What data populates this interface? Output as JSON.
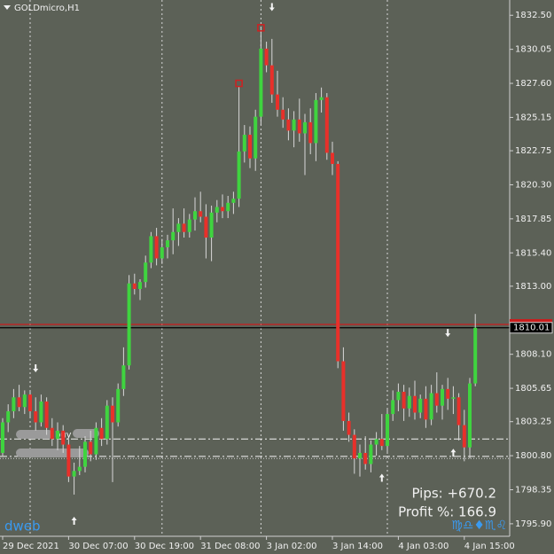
{
  "chart_data": {
    "type": "candlestick",
    "title": "GOLDmicro,H1",
    "categories": [
      "29 Dec 2021",
      null,
      null,
      null,
      null,
      null,
      null,
      null,
      null,
      null,
      null,
      null,
      "30 Dec 07:00",
      null,
      null,
      null,
      null,
      null,
      null,
      null,
      null,
      null,
      null,
      null,
      "30 Dec 19:00",
      null,
      null,
      null,
      null,
      null,
      null,
      null,
      null,
      null,
      null,
      null,
      "31 Dec 08:00",
      null,
      null,
      null,
      null,
      null,
      null,
      null,
      null,
      null,
      null,
      null,
      "3 Jan 02:00",
      null,
      null,
      null,
      null,
      null,
      null,
      null,
      null,
      null,
      null,
      null,
      "3 Jan 14:00",
      null,
      null,
      null,
      null,
      null,
      null,
      null,
      null,
      null,
      null,
      null,
      "4 Jan 03:00",
      null,
      null,
      null,
      null,
      null,
      null,
      null,
      null,
      null,
      null,
      null,
      "4 Jan 15:00",
      null,
      null
    ],
    "open": [
      1801.0,
      1803.2,
      1804.0,
      1805.0,
      1804.3,
      1805.2,
      1804.0,
      1803.2,
      1804.7,
      1802.8,
      1802.0,
      1802.6,
      1801.6,
      1799.3,
      1799.7,
      1800.0,
      1801.8,
      1800.9,
      1802.8,
      1802.0,
      1804.4,
      1803.2,
      1805.6,
      1807.3,
      1813.2,
      1812.8,
      1813.3,
      1814.7,
      1816.6,
      1815.0,
      1815.8,
      1816.3,
      1816.9,
      1817.5,
      1816.9,
      1817.8,
      1818.4,
      1818.0,
      1816.5,
      1818.3,
      1818.7,
      1818.4,
      1819.0,
      1819.3,
      1822.7,
      1823.9,
      1822.2,
      1825.2,
      1830.1,
      1828.9,
      1826.8,
      1825.7,
      1825.0,
      1824.2,
      1825.0,
      1824.0,
      1824.8,
      1823.3,
      1826.4,
      1826.6,
      1822.6,
      1821.8,
      1807.6,
      1803.3,
      1802.3,
      1800.6,
      1801.0,
      1800.2,
      1801.6,
      1802.0,
      1801.5,
      1803.8,
      1804.8,
      1805.4,
      1804.2,
      1805.1,
      1803.9,
      1804.9,
      1803.4,
      1805.3,
      1804.4,
      1805.6,
      1804.9,
      1805.0,
      1803.0,
      1801.4,
      1806.0
    ],
    "high": [
      1803.5,
      1804.5,
      1805.6,
      1805.9,
      1805.5,
      1805.5,
      1805.0,
      1805.2,
      1805.0,
      1803.5,
      1803.2,
      1803.0,
      1802.0,
      1800.3,
      1801.5,
      1802.2,
      1802.6,
      1803.2,
      1803.5,
      1804.8,
      1805.0,
      1806.0,
      1808.6,
      1813.8,
      1813.9,
      1813.5,
      1815.2,
      1816.9,
      1817.2,
      1816.4,
      1816.7,
      1818.6,
      1817.9,
      1818.6,
      1818.2,
      1819.4,
      1819.8,
      1818.9,
      1818.8,
      1819.2,
      1819.6,
      1819.5,
      1819.8,
      1827.4,
      1824.6,
      1824.5,
      1825.7,
      1831.6,
      1830.6,
      1830.8,
      1828.5,
      1826.6,
      1825.8,
      1825.6,
      1826.5,
      1825.4,
      1825.8,
      1826.9,
      1827.3,
      1826.9,
      1823.4,
      1822.0,
      1808.6,
      1803.9,
      1802.7,
      1801.6,
      1802.2,
      1801.9,
      1802.5,
      1803.8,
      1804.2,
      1805.5,
      1806.0,
      1805.9,
      1805.7,
      1806.2,
      1805.2,
      1805.8,
      1805.9,
      1806.8,
      1805.9,
      1806.4,
      1805.8,
      1805.3,
      1804.1,
      1806.4,
      1811.0
    ],
    "low": [
      1800.8,
      1802.5,
      1803.5,
      1804.0,
      1803.8,
      1803.6,
      1802.6,
      1802.9,
      1802.3,
      1801.5,
      1801.2,
      1801.0,
      1798.9,
      1798.0,
      1799.4,
      1799.6,
      1800.4,
      1800.5,
      1801.5,
      1801.6,
      1798.9,
      1802.9,
      1805.1,
      1807.0,
      1812.4,
      1812.0,
      1812.9,
      1814.3,
      1814.5,
      1814.6,
      1815.0,
      1815.3,
      1815.9,
      1816.5,
      1816.5,
      1817.0,
      1817.6,
      1815.0,
      1814.8,
      1817.6,
      1817.9,
      1817.9,
      1818.2,
      1818.7,
      1821.9,
      1821.5,
      1821.3,
      1824.6,
      1828.4,
      1826.2,
      1825.2,
      1824.4,
      1823.5,
      1823.0,
      1823.4,
      1821.0,
      1822.5,
      1822.0,
      1825.5,
      1822.1,
      1821.0,
      1807.1,
      1802.6,
      1801.8,
      1799.5,
      1799.3,
      1799.8,
      1799.6,
      1800.8,
      1801.2,
      1801.0,
      1803.3,
      1804.0,
      1803.3,
      1803.6,
      1803.4,
      1803.5,
      1802.8,
      1803.0,
      1803.9,
      1803.4,
      1804.1,
      1803.8,
      1801.9,
      1800.4,
      1800.6,
      1805.8
    ],
    "close": [
      1803.2,
      1804.0,
      1805.0,
      1804.3,
      1805.2,
      1804.0,
      1803.2,
      1804.7,
      1802.8,
      1802.0,
      1802.6,
      1801.6,
      1799.3,
      1799.7,
      1800.0,
      1801.8,
      1800.9,
      1802.8,
      1802.0,
      1804.4,
      1803.2,
      1805.6,
      1807.3,
      1813.2,
      1812.8,
      1813.3,
      1814.7,
      1816.6,
      1815.0,
      1815.8,
      1816.3,
      1816.9,
      1817.5,
      1816.9,
      1817.8,
      1818.4,
      1818.0,
      1816.5,
      1818.3,
      1818.7,
      1818.4,
      1819.0,
      1819.3,
      1822.7,
      1823.9,
      1822.2,
      1825.2,
      1830.1,
      1828.9,
      1826.8,
      1825.7,
      1825.0,
      1824.2,
      1825.0,
      1824.0,
      1824.8,
      1823.3,
      1826.4,
      1826.6,
      1822.6,
      1821.8,
      1807.6,
      1803.3,
      1802.3,
      1800.6,
      1801.0,
      1800.2,
      1801.6,
      1802.0,
      1801.5,
      1803.8,
      1804.8,
      1805.4,
      1804.2,
      1805.1,
      1803.9,
      1804.9,
      1803.4,
      1805.3,
      1804.4,
      1805.6,
      1804.9,
      1805.0,
      1803.0,
      1801.4,
      1806.0,
      1810.01
    ],
    "up_color": "#3fd43f",
    "down_color": "#e8302a",
    "wick_color": "#d8d8d8",
    "grid": false,
    "ylim": [
      1795.0,
      1833.6
    ],
    "yticks": [
      {
        "value": 1832.5,
        "label": "1832.50"
      },
      {
        "value": 1830.05,
        "label": "1830.05"
      },
      {
        "value": 1827.6,
        "label": "1827.60"
      },
      {
        "value": 1825.15,
        "label": "1825.15"
      },
      {
        "value": 1822.75,
        "label": "1822.75"
      },
      {
        "value": 1820.3,
        "label": "1820.30"
      },
      {
        "value": 1817.85,
        "label": "1817.85"
      },
      {
        "value": 1815.4,
        "label": "1815.40"
      },
      {
        "value": 1813.0,
        "label": "1813.00"
      },
      {
        "value": 1808.1,
        "label": "1808.10"
      },
      {
        "value": 1805.65,
        "label": "1805.65"
      },
      {
        "value": 1803.25,
        "label": "1803.25"
      },
      {
        "value": 1800.8,
        "label": "1800.80"
      },
      {
        "value": 1798.35,
        "label": "1798.35"
      },
      {
        "value": 1795.9,
        "label": "1795.90"
      }
    ],
    "price_lines": [
      {
        "value": 1810.25,
        "color": "#c81e1e"
      },
      {
        "value": 1810.01,
        "label": "1810.01",
        "color": "#000000"
      }
    ],
    "levels": [
      {
        "value": 1802.0,
        "style": "dashdot",
        "label": "buy"
      },
      {
        "value": 1800.75,
        "style": "dashdot"
      },
      {
        "value": 1800.6,
        "style": "dotted"
      }
    ],
    "signals": [
      {
        "index": 6,
        "price": 1806.8,
        "direction": "down"
      },
      {
        "index": 49,
        "price": 1832.8,
        "direction": "down"
      },
      {
        "index": 81,
        "price": 1809.35,
        "direction": "down"
      },
      {
        "index": 13,
        "price": 1796.4,
        "direction": "up"
      },
      {
        "index": 69,
        "price": 1799.5,
        "direction": "up"
      },
      {
        "index": 82,
        "price": 1801.3,
        "direction": "up"
      }
    ],
    "markers": [
      {
        "index": 43,
        "price": 1827.6
      },
      {
        "index": 47,
        "price": 1831.6
      }
    ],
    "pips": "Pips: +670.2",
    "profit": "Profit %: 166.9",
    "brand": "dweb",
    "symbols": "♍♎♦♏♌"
  }
}
